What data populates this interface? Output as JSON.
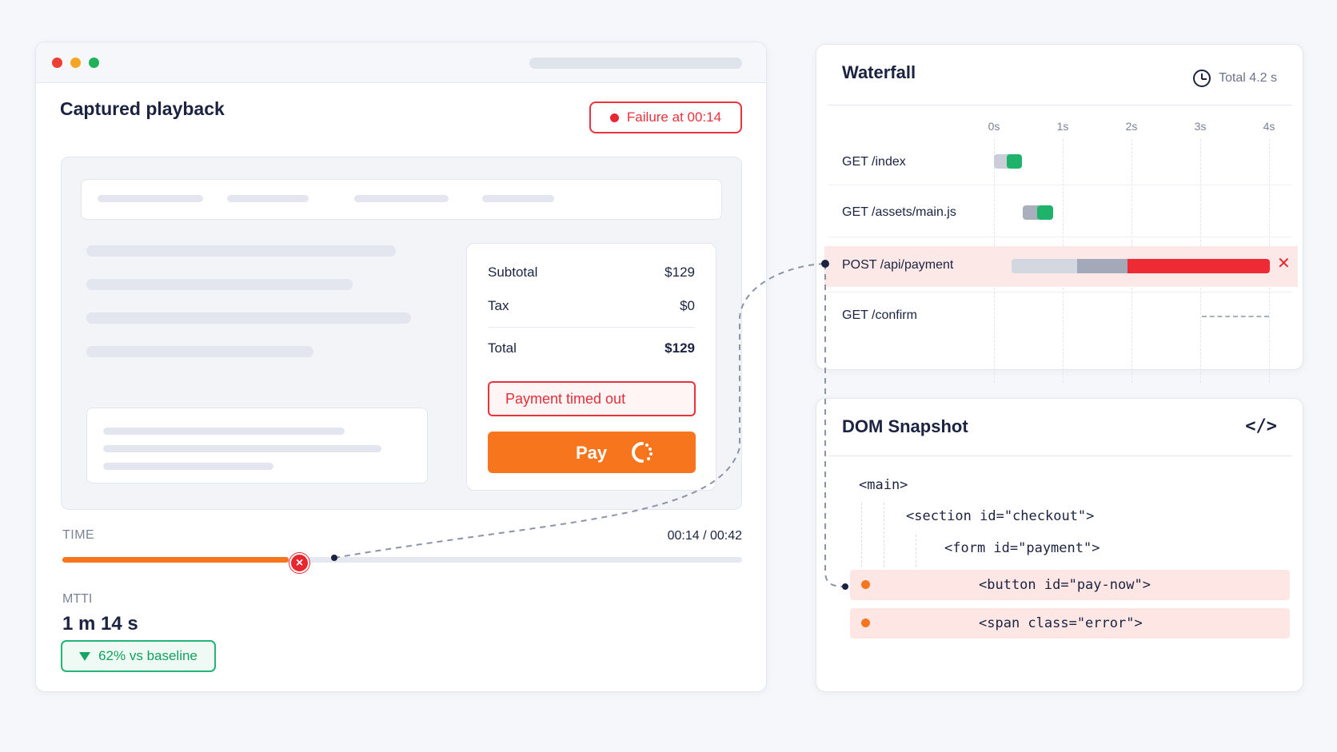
{
  "playback": {
    "title": "Captured playback",
    "failure_badge": "Failure at 00:14",
    "summary": {
      "subtotal_label": "Subtotal",
      "subtotal_value": "$129",
      "tax_label": "Tax",
      "tax_value": "$0",
      "total_label": "Total",
      "total_value": "$129"
    },
    "error_message": "Payment timed out",
    "pay_button": "Pay",
    "timeline": {
      "label": "TIME",
      "readout": "00:14 / 00:42",
      "progress_fraction": 0.333
    },
    "mtti": {
      "label": "MTTI",
      "value": "1 m 14 s",
      "baseline": "62% vs baseline"
    }
  },
  "waterfall": {
    "title": "Waterfall",
    "total": "Total 4.2 s",
    "ticks": [
      "0s",
      "1s",
      "2s",
      "3s",
      "4s"
    ],
    "requests": [
      {
        "label": "GET /index",
        "status": "ok"
      },
      {
        "label": "GET /assets/main.js",
        "status": "ok"
      },
      {
        "label": "POST /api/payment",
        "status": "failed"
      },
      {
        "label": "GET /confirm",
        "status": "pending"
      }
    ]
  },
  "dom_snapshot": {
    "title": "DOM Snapshot",
    "code_icon": "</>",
    "lines": [
      "<main>",
      "<section id=\"checkout\">",
      "<form id=\"payment\">",
      "<button id=\"pay-now\">",
      "<span class=\"error\">"
    ]
  },
  "colors": {
    "accent_orange": "#f7751d",
    "error_red": "#e8262f",
    "success_green": "#1fb26b",
    "highlight_pink": "#fde8e8"
  }
}
